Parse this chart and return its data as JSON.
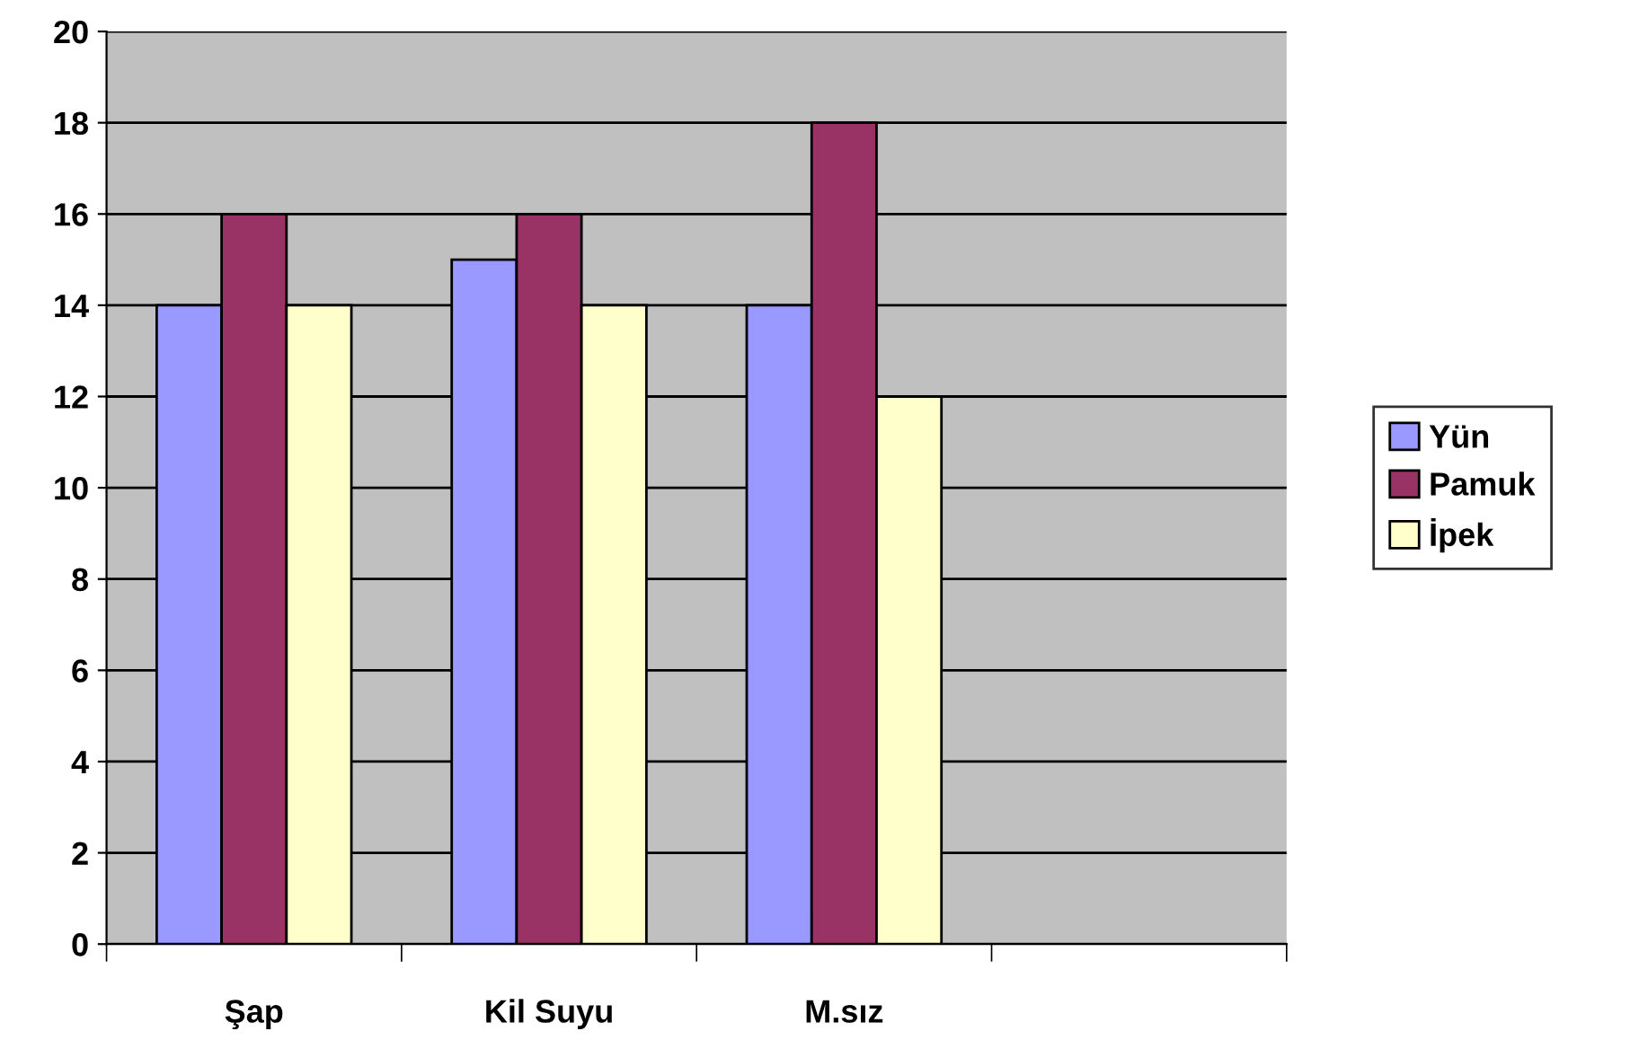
{
  "chart_data": {
    "type": "bar",
    "categories": [
      "Şap",
      "Kil Suyu",
      "M.sız",
      null
    ],
    "series": [
      {
        "name": "Yün",
        "color": "#9999ff",
        "values": [
          14,
          15,
          14,
          null
        ]
      },
      {
        "name": "Pamuk",
        "color": "#993366",
        "values": [
          16,
          16,
          18,
          null
        ]
      },
      {
        "name": "İpek",
        "color": "#ffffcc",
        "values": [
          14,
          14,
          12,
          null
        ]
      }
    ],
    "ylim": [
      0,
      20
    ],
    "yticks": [
      0,
      2,
      4,
      6,
      8,
      10,
      12,
      14,
      16,
      18,
      20
    ],
    "grid": "y",
    "legend": "right"
  }
}
